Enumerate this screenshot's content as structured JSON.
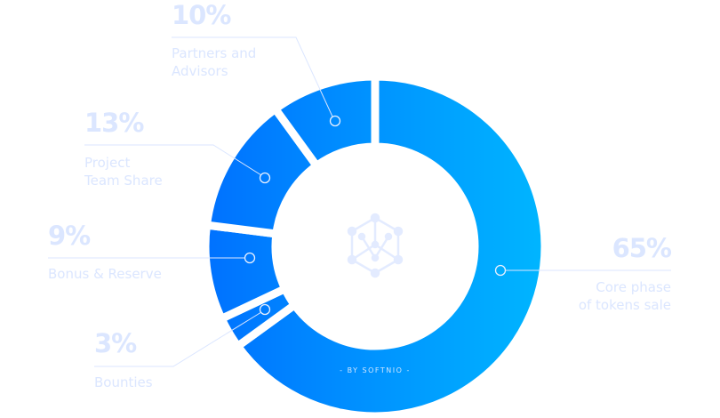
{
  "chart_data": {
    "type": "pie",
    "variant": "donut",
    "slices": [
      {
        "label": "Core phase\nof tokens sale",
        "value": 65,
        "value_label": "65%"
      },
      {
        "label": "Bounties",
        "value": 3,
        "value_label": "3%"
      },
      {
        "label": "Bonus & Reserve",
        "value": 9,
        "value_label": "9%"
      },
      {
        "label": "Project\nTeam Share",
        "value": 13,
        "value_label": "13%"
      },
      {
        "label": "Partners and\nAdvisors",
        "value": 10,
        "value_label": "10%"
      }
    ],
    "colors": {
      "gradient_start": "#0071ff",
      "gradient_end": "#00b6ff",
      "label": "#dbe6ff"
    },
    "center_icon": "hexagon-cube-network-icon",
    "credit": "- BY SOFTNIO -"
  }
}
